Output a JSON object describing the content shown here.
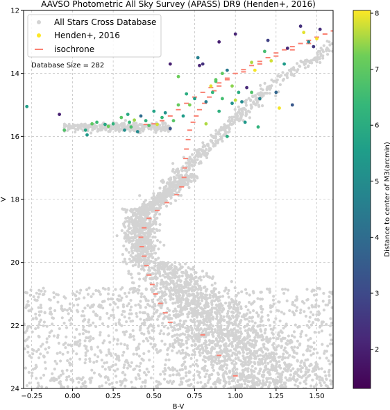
{
  "chart_data": {
    "type": "scatter",
    "title": "AAVSO Photometric All Sky Survey (APASS) DR9 (Henden+, 2016)",
    "xlabel": "B-V",
    "ylabel": "V",
    "xlim": [
      -0.3,
      1.6
    ],
    "ylim": [
      24,
      12
    ],
    "y_inverted": true,
    "x_ticks": [
      -0.25,
      0.0,
      0.25,
      0.5,
      0.75,
      1.0,
      1.25,
      1.5
    ],
    "x_tick_labels": [
      "−0.25",
      "0.00",
      "0.25",
      "0.50",
      "0.75",
      "1.00",
      "1.25",
      "1.50"
    ],
    "y_ticks": [
      12,
      14,
      16,
      18,
      20,
      22,
      24
    ],
    "y_tick_labels": [
      "12",
      "14",
      "16",
      "18",
      "20",
      "22",
      "24"
    ],
    "grid": true,
    "legend_position": "top-left",
    "annotation": "Database Size = 282",
    "colorbar": {
      "label": "Distance to center of M3(arcmin)",
      "range": [
        1.3,
        8.05
      ],
      "ticks": [
        2,
        3,
        4,
        5,
        6,
        7,
        8
      ],
      "tick_labels": [
        "2",
        "3",
        "4",
        "5",
        "6",
        "7",
        "8"
      ],
      "colormap": "viridis"
    },
    "series": [
      {
        "name": "All Stars Cross Database",
        "color": "#d3d3d3",
        "marker": "circle",
        "model": {
          "main_sequence": {
            "v_range": [
              20,
              24.2
            ],
            "bv_at_v20": 0.55,
            "bv_slope": 0.16,
            "spread": 0.09
          },
          "turnoff": {
            "v_range": [
              18.3,
              20
            ],
            "bv_center": 0.42,
            "spread": 0.05
          },
          "subgiant": {
            "v_range": [
              17.2,
              18.4
            ],
            "bv_range": [
              0.45,
              0.72
            ],
            "spread": 0.035
          },
          "red_giant": {
            "v_range": [
              12.5,
              17.5
            ],
            "bv_at_v17": 0.69,
            "bv_slope": -0.2,
            "spread": 0.03
          },
          "horizontal_branch": {
            "bv_range": [
              -0.05,
              0.6
            ],
            "v_center": 15.7,
            "spread": 0.07
          },
          "field_background": {
            "bv_range": [
              -0.3,
              1.6
            ],
            "v_range": [
              20.8,
              24
            ],
            "density": "high"
          }
        }
      },
      {
        "name": "Henden+, 2016",
        "color_by": "distance",
        "marker": "circle",
        "points": [
          [
            -0.28,
            15.05,
            5.6
          ],
          [
            -0.08,
            15.3,
            2.0
          ],
          [
            -0.05,
            15.8,
            6.8
          ],
          [
            0.08,
            15.8,
            5.8
          ],
          [
            0.09,
            15.95,
            5.4
          ],
          [
            0.12,
            15.6,
            7.0
          ],
          [
            0.15,
            15.55,
            6.5
          ],
          [
            0.2,
            15.62,
            5.8
          ],
          [
            0.22,
            15.68,
            7.2
          ],
          [
            0.25,
            15.6,
            6.2
          ],
          [
            0.3,
            15.4,
            6.9
          ],
          [
            0.32,
            15.8,
            5.1
          ],
          [
            0.34,
            15.3,
            5.9
          ],
          [
            0.35,
            15.55,
            6.4
          ],
          [
            0.36,
            15.7,
            6.7
          ],
          [
            0.38,
            15.48,
            7.5
          ],
          [
            0.4,
            15.85,
            4.9
          ],
          [
            0.42,
            15.35,
            4.0
          ],
          [
            0.45,
            15.5,
            6.1
          ],
          [
            0.47,
            15.65,
            6.8
          ],
          [
            0.5,
            15.2,
            5.7
          ],
          [
            0.52,
            15.62,
            7.8
          ],
          [
            0.55,
            15.4,
            6.3
          ],
          [
            0.57,
            15.25,
            5.2
          ],
          [
            0.6,
            15.75,
            3.3
          ],
          [
            0.62,
            15.5,
            6.9
          ],
          [
            0.65,
            15.0,
            7.1
          ],
          [
            0.68,
            15.35,
            5.5
          ],
          [
            0.6,
            13.7,
            2.0
          ],
          [
            0.65,
            14.1,
            7.2
          ],
          [
            0.7,
            14.65,
            6.0
          ],
          [
            0.72,
            15.0,
            7.3
          ],
          [
            0.75,
            14.8,
            5.6
          ],
          [
            0.77,
            13.5,
            4.6
          ],
          [
            0.78,
            13.75,
            2.1
          ],
          [
            0.8,
            13.7,
            2.4
          ],
          [
            0.82,
            14.9,
            4.5
          ],
          [
            0.82,
            15.6,
            7.6
          ],
          [
            0.85,
            14.4,
            7.9
          ],
          [
            0.86,
            14.6,
            6.3
          ],
          [
            0.88,
            14.25,
            6.8
          ],
          [
            0.9,
            15.2,
            6.1
          ],
          [
            0.9,
            13.0,
            2.0
          ],
          [
            0.92,
            14.0,
            7.0
          ],
          [
            0.95,
            13.9,
            4.4
          ],
          [
            0.95,
            16.0,
            6.0
          ],
          [
            0.98,
            14.4,
            7.4
          ],
          [
            1.0,
            14.85,
            7.7
          ],
          [
            1.0,
            12.75,
            2.1
          ],
          [
            1.02,
            14.6,
            6.0
          ],
          [
            1.04,
            14.9,
            4.9
          ],
          [
            1.06,
            15.55,
            5.4
          ],
          [
            1.07,
            14.45,
            2.2
          ],
          [
            1.1,
            14.6,
            6.8
          ],
          [
            1.1,
            13.65,
            7.6
          ],
          [
            1.12,
            13.9,
            8.0
          ],
          [
            1.14,
            15.7,
            6.2
          ],
          [
            1.15,
            14.8,
            4.7
          ],
          [
            1.18,
            13.3,
            6.6
          ],
          [
            1.2,
            12.95,
            2.8
          ],
          [
            1.22,
            13.6,
            7.8
          ],
          [
            1.25,
            14.6,
            3.8
          ],
          [
            1.27,
            15.1,
            8.0
          ],
          [
            1.3,
            13.7,
            5.5
          ],
          [
            1.32,
            13.2,
            2.2
          ],
          [
            1.35,
            15.0,
            3.4
          ],
          [
            1.4,
            12.5,
            2.4
          ],
          [
            1.42,
            12.7,
            7.9
          ],
          [
            1.45,
            13.0,
            4.7
          ],
          [
            1.48,
            13.15,
            2.6
          ],
          [
            1.5,
            12.9,
            8.0
          ],
          [
            1.52,
            12.6,
            2.3
          ],
          [
            0.88,
            14.2,
            7.0
          ],
          [
            0.92,
            14.8,
            6.6
          ],
          [
            0.98,
            14.95,
            5.2
          ]
        ]
      },
      {
        "name": "isochrone",
        "color": "#fa8072",
        "marker": "dash",
        "points": [
          [
            1.6,
            12.65
          ],
          [
            1.55,
            12.75
          ],
          [
            1.5,
            12.85
          ],
          [
            1.45,
            12.95
          ],
          [
            1.4,
            13.05
          ],
          [
            1.35,
            13.15
          ],
          [
            1.3,
            13.25
          ],
          [
            1.25,
            13.35
          ],
          [
            1.2,
            13.5
          ],
          [
            1.15,
            13.62
          ],
          [
            1.1,
            13.75
          ],
          [
            1.05,
            13.88
          ],
          [
            1.0,
            14.0
          ],
          [
            0.95,
            14.2
          ],
          [
            0.9,
            14.4
          ],
          [
            0.87,
            14.55
          ],
          [
            0.84,
            14.75
          ],
          [
            0.81,
            14.95
          ],
          [
            0.78,
            15.15
          ],
          [
            0.76,
            15.35
          ],
          [
            0.74,
            15.55
          ],
          [
            0.72,
            15.8
          ],
          [
            0.71,
            16.1
          ],
          [
            0.7,
            16.4
          ],
          [
            0.695,
            16.7
          ],
          [
            0.69,
            17.0
          ],
          [
            0.685,
            17.3
          ],
          [
            0.67,
            17.6
          ],
          [
            0.64,
            17.85
          ],
          [
            0.58,
            18.1
          ],
          [
            0.52,
            18.35
          ],
          [
            0.47,
            18.6
          ],
          [
            0.44,
            18.9
          ],
          [
            0.42,
            19.2
          ],
          [
            0.425,
            19.5
          ],
          [
            0.44,
            19.8
          ],
          [
            0.455,
            20.1
          ],
          [
            0.47,
            20.4
          ],
          [
            0.49,
            20.7
          ],
          [
            0.51,
            21.0
          ],
          [
            0.54,
            21.3
          ],
          [
            0.57,
            21.6
          ],
          [
            0.6,
            21.9
          ],
          [
            0.8,
            22.3
          ],
          [
            0.9,
            22.95
          ],
          [
            1.0,
            23.6
          ],
          [
            0.45,
            15.62
          ],
          [
            0.5,
            15.6
          ],
          [
            0.55,
            15.5
          ],
          [
            0.6,
            15.35
          ],
          [
            0.65,
            15.15
          ],
          [
            0.7,
            14.95
          ],
          [
            0.75,
            14.75
          ],
          [
            0.8,
            14.6
          ],
          [
            0.85,
            14.45
          ],
          [
            0.9,
            14.3
          ],
          [
            0.95,
            14.15
          ],
          [
            1.05,
            13.95
          ],
          [
            1.15,
            13.7
          ],
          [
            1.25,
            13.45
          ],
          [
            1.35,
            13.25
          ],
          [
            1.45,
            13.05
          ]
        ]
      }
    ]
  }
}
